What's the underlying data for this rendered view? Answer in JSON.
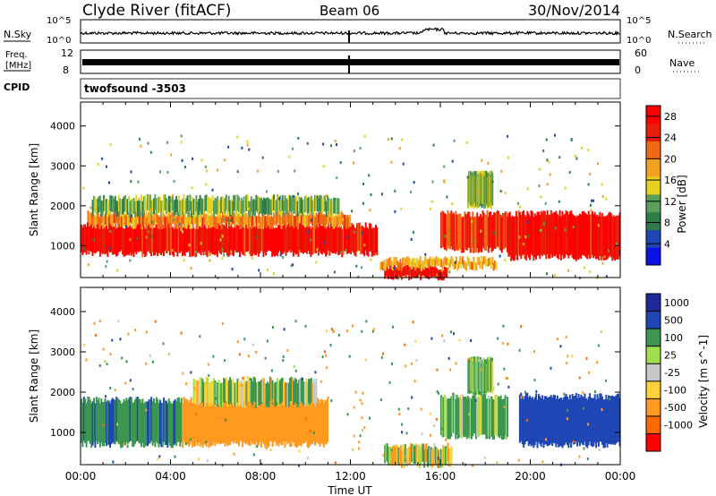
{
  "header": {
    "title": "Clyde River (fitACF)",
    "beam": "Beam 06",
    "date": "30/Nov/2014"
  },
  "nsky_panel": {
    "left_label": "N.Sky",
    "right_label": "N.Search",
    "tick_top": "10^5",
    "tick_bottom": "10^0",
    "right_tick_top": "10^5",
    "right_tick_bottom": "10^0"
  },
  "freq_panel": {
    "left_label_line1": "Freq.",
    "left_label_line2": "[MHz]",
    "left_ticks": [
      "12",
      "8"
    ],
    "right_ticks": [
      "60",
      "0"
    ],
    "right_label": "Nave"
  },
  "cpid": {
    "label": "CPID",
    "value": "twofsound  -3503"
  },
  "colors": {
    "power_scale": [
      "#0a14e6",
      "#1e46b4",
      "#2e7d4a",
      "#5aa05a",
      "#e6d21e",
      "#f5a01e",
      "#f06a14",
      "#e61e0a",
      "#ff0000"
    ],
    "velocity_scale": [
      "#ff0000",
      "#ff6a00",
      "#ff9a1e",
      "#ffd23c",
      "#c8c8c8",
      "#a0e050",
      "#3c9650",
      "#1e46b4",
      "#1e2896"
    ]
  },
  "chart_data": [
    {
      "type": "heatmap",
      "title": "Power",
      "ylabel": "Slant Range [km]",
      "xlabel": "",
      "ylim": [
        200,
        4600
      ],
      "x_ticks": [
        "00:00",
        "04:00",
        "08:00",
        "12:00",
        "16:00",
        "20:00",
        "00:00"
      ],
      "y_ticks": [
        1000,
        2000,
        3000,
        4000
      ],
      "colorbar": {
        "label": "Power [dB]",
        "ticks": [
          4,
          8,
          12,
          16,
          20,
          24,
          28
        ],
        "range": [
          0,
          30
        ]
      },
      "regions": [
        {
          "t": [
            0.0,
            13.2
          ],
          "range_km": [
            800,
            1500
          ],
          "level": 27
        },
        {
          "t": [
            0.3,
            12.0
          ],
          "range_km": [
            1500,
            1800
          ],
          "level": 20
        },
        {
          "t": [
            0.5,
            11.5
          ],
          "range_km": [
            1800,
            2200
          ],
          "level": 12
        },
        {
          "t": [
            13.5,
            16.3
          ],
          "range_km": [
            200,
            450
          ],
          "level": 28
        },
        {
          "t": [
            13.3,
            18.5
          ],
          "range_km": [
            450,
            650
          ],
          "level": 18
        },
        {
          "t": [
            16.0,
            19.0
          ],
          "range_km": [
            900,
            1800
          ],
          "level": 24
        },
        {
          "t": [
            19.0,
            24.0
          ],
          "range_km": [
            700,
            1800
          ],
          "level": 27
        },
        {
          "t": [
            17.2,
            18.3
          ],
          "range_km": [
            2000,
            2800
          ],
          "level": 12
        }
      ]
    },
    {
      "type": "heatmap",
      "title": "Velocity",
      "ylabel": "Slant Range [km]",
      "xlabel": "Time UT",
      "ylim": [
        200,
        4600
      ],
      "x_ticks": [
        "00:00",
        "04:00",
        "08:00",
        "12:00",
        "16:00",
        "20:00",
        "00:00"
      ],
      "y_ticks": [
        1000,
        2000,
        3000,
        4000
      ],
      "colorbar": {
        "label": "Velocity [m s^-1]",
        "ticks": [
          "1000",
          "500",
          "100",
          "25",
          "-25",
          "-100",
          "-500",
          "-1000"
        ]
      },
      "regions": [
        {
          "t": [
            0.0,
            4.5
          ],
          "range_km": [
            700,
            1800
          ],
          "velocity": 400
        },
        {
          "t": [
            4.5,
            11.0
          ],
          "range_km": [
            700,
            1800
          ],
          "velocity": -300
        },
        {
          "t": [
            5.0,
            10.5
          ],
          "range_km": [
            1700,
            2300
          ],
          "velocity": 80
        },
        {
          "t": [
            13.5,
            16.5
          ],
          "range_km": [
            200,
            650
          ],
          "velocity": 0
        },
        {
          "t": [
            16.0,
            19.0
          ],
          "range_km": [
            900,
            1900
          ],
          "velocity": 150
        },
        {
          "t": [
            19.5,
            24.0
          ],
          "range_km": [
            700,
            1900
          ],
          "velocity": 700
        },
        {
          "t": [
            17.2,
            18.3
          ],
          "range_km": [
            2000,
            2800
          ],
          "velocity": 150
        }
      ]
    }
  ]
}
